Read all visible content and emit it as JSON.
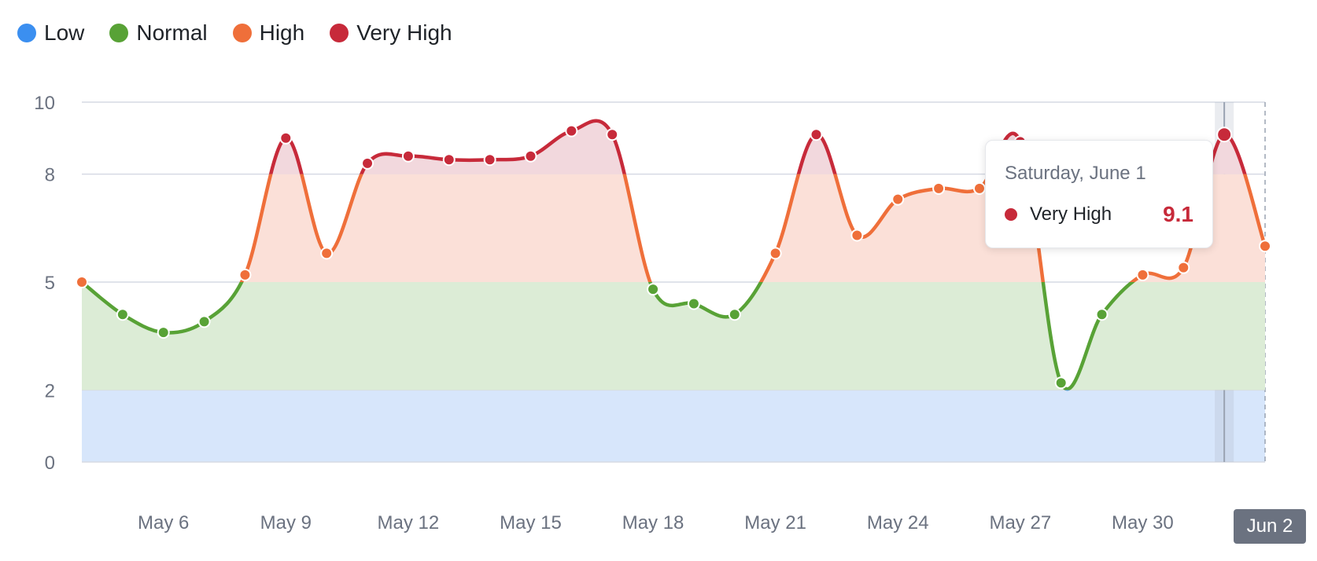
{
  "colors": {
    "low": "#3b8ff0",
    "normal": "#58a236",
    "high": "#ef6f3a",
    "very_high": "#c72a3a",
    "band_low": "#d7e6fb",
    "band_normal": "#dcecd6",
    "band_high": "#fbe0d8",
    "band_very_high": "#f2d8dd",
    "grid": "#d6dae4",
    "axis_text": "#6b7280"
  },
  "legend": [
    {
      "label": "Low",
      "color": "#3b8ff0"
    },
    {
      "label": "Normal",
      "color": "#58a236"
    },
    {
      "label": "High",
      "color": "#ef6f3a"
    },
    {
      "label": "Very High",
      "color": "#c72a3a"
    }
  ],
  "tooltip": {
    "date": "Saturday, June 1",
    "series": "Very High",
    "value": "9.1",
    "color": "#c72a3a"
  },
  "hover_x_label": "Jun 2",
  "chart_data": {
    "type": "area",
    "title": "",
    "xlabel": "",
    "ylabel": "",
    "x": [
      "May 4",
      "May 5",
      "May 6",
      "May 7",
      "May 8",
      "May 9",
      "May 10",
      "May 11",
      "May 12",
      "May 13",
      "May 14",
      "May 15",
      "May 16",
      "May 17",
      "May 18",
      "May 19",
      "May 20",
      "May 21",
      "May 22",
      "May 23",
      "May 24",
      "May 25",
      "May 26",
      "May 27",
      "May 28",
      "May 29",
      "May 30",
      "May 31",
      "Jun 1",
      "Jun 2"
    ],
    "series": [
      {
        "values": [
          5.0,
          4.1,
          3.6,
          3.9,
          5.2,
          9.0,
          5.8,
          8.3,
          8.5,
          8.4,
          8.4,
          8.5,
          9.2,
          9.1,
          4.8,
          4.4,
          4.1,
          5.8,
          9.1,
          6.3,
          7.3,
          7.6,
          7.6,
          8.9,
          2.2,
          4.1,
          5.2,
          5.4,
          9.1,
          6.0
        ]
      }
    ],
    "thresholds": [
      {
        "label": "Low",
        "from": 0,
        "to": 2
      },
      {
        "label": "Normal",
        "from": 2,
        "to": 5
      },
      {
        "label": "High",
        "from": 5,
        "to": 8
      },
      {
        "label": "Very High",
        "from": 8,
        "to": 10
      }
    ],
    "yticks": [
      "0",
      "2",
      "5",
      "8",
      "10"
    ],
    "xticks": [
      "May 6",
      "May 9",
      "May 12",
      "May 15",
      "May 18",
      "May 21",
      "May 24",
      "May 27",
      "May 30"
    ],
    "ylim": [
      0,
      10
    ],
    "grid": true,
    "legend_position": "top-left",
    "highlighted": {
      "x": "Jun 1",
      "value": 9.1
    }
  }
}
